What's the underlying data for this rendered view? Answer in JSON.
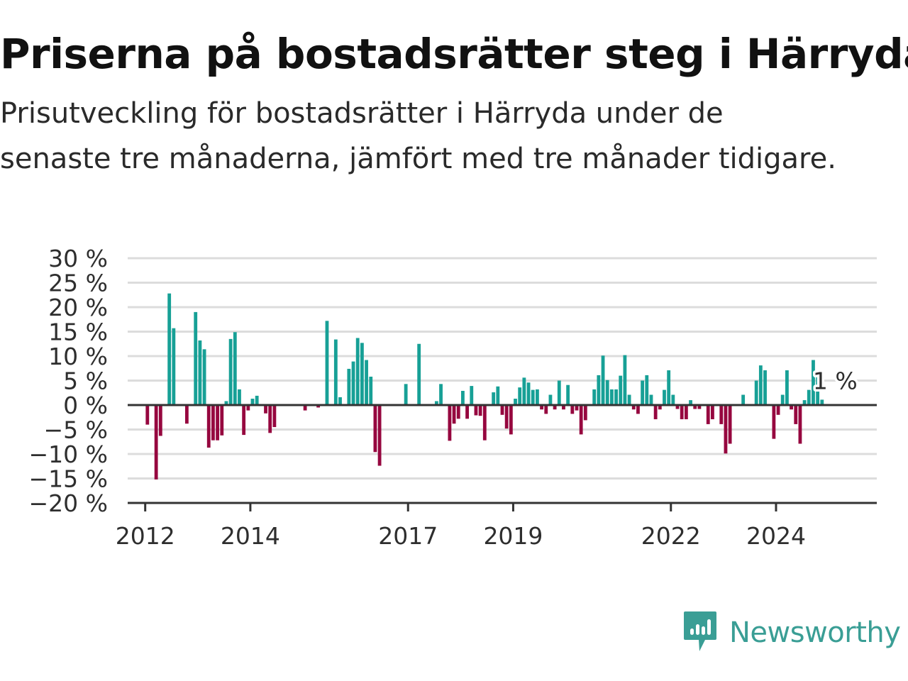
{
  "header": {
    "title": "Priserna på bostadsrätter steg i Härryda",
    "subtitle": "Prisutveckling för bostadsrätter i Härryda under de senaste tre månaderna, jämfört med tre månader tidigare."
  },
  "brand": {
    "name": "Newsworthy",
    "icon": "newsworthy-logo-icon",
    "color": "#3a9e95"
  },
  "colors": {
    "positive": "#17a096",
    "negative": "#96073f",
    "grid": "#dcdcdc",
    "baseline": "#333333"
  },
  "chart_data": {
    "type": "bar",
    "y_unit": "%",
    "ylim": [
      -20,
      30
    ],
    "yticks": [
      "30 %",
      "25 %",
      "20 %",
      "15 %",
      "10 %",
      "5 %",
      "0 %",
      "−5 %",
      "−10 %",
      "−15 %",
      "−20 %"
    ],
    "xticks": [
      "2012",
      "2014",
      "2017",
      "2019",
      "2022",
      "2024"
    ],
    "x_range": [
      "2011-09",
      "2025-12"
    ],
    "grid": true,
    "annotation": {
      "text": "1 %",
      "date": "2025-02"
    },
    "points": [
      [
        "2012-01",
        -4
      ],
      [
        "2012-03",
        -15.2
      ],
      [
        "2012-04",
        -6.3
      ],
      [
        "2012-06",
        22.8
      ],
      [
        "2012-07",
        15.7
      ],
      [
        "2012-10",
        -3.8
      ],
      [
        "2012-12",
        19
      ],
      [
        "2013-01",
        13.2
      ],
      [
        "2013-02",
        11.4
      ],
      [
        "2013-03",
        -8.7
      ],
      [
        "2013-04",
        -7.2
      ],
      [
        "2013-05",
        -7.2
      ],
      [
        "2013-06",
        -6.2
      ],
      [
        "2013-07",
        0.8
      ],
      [
        "2013-08",
        13.5
      ],
      [
        "2013-09",
        14.9
      ],
      [
        "2013-10",
        3.2
      ],
      [
        "2013-11",
        -6.1
      ],
      [
        "2013-12",
        -1.1
      ],
      [
        "2014-01",
        1.3
      ],
      [
        "2014-02",
        1.9
      ],
      [
        "2014-04",
        -1.7
      ],
      [
        "2014-05",
        -5.7
      ],
      [
        "2014-06",
        -4.5
      ],
      [
        "2015-01",
        -1.1
      ],
      [
        "2015-04",
        -0.5
      ],
      [
        "2015-06",
        17.2
      ],
      [
        "2015-08",
        13.4
      ],
      [
        "2015-09",
        1.6
      ],
      [
        "2015-11",
        7.4
      ],
      [
        "2015-12",
        8.9
      ],
      [
        "2016-01",
        13.7
      ],
      [
        "2016-02",
        12.7
      ],
      [
        "2016-03",
        9.2
      ],
      [
        "2016-04",
        5.8
      ],
      [
        "2016-05",
        -9.6
      ],
      [
        "2016-06",
        -12.4
      ],
      [
        "2016-12",
        4.3
      ],
      [
        "2017-03",
        12.5
      ],
      [
        "2017-07",
        0.8
      ],
      [
        "2017-08",
        4.3
      ],
      [
        "2017-10",
        -7.3
      ],
      [
        "2017-11",
        -3.8
      ],
      [
        "2017-12",
        -2.8
      ],
      [
        "2018-01",
        2.9
      ],
      [
        "2018-02",
        -2.8
      ],
      [
        "2018-03",
        3.9
      ],
      [
        "2018-04",
        -2.1
      ],
      [
        "2018-05",
        -2.2
      ],
      [
        "2018-06",
        -7.2
      ],
      [
        "2018-08",
        2.6
      ],
      [
        "2018-09",
        3.8
      ],
      [
        "2018-10",
        -2
      ],
      [
        "2018-11",
        -4.8
      ],
      [
        "2018-12",
        -6
      ],
      [
        "2019-01",
        1.3
      ],
      [
        "2019-02",
        3.6
      ],
      [
        "2019-03",
        5.6
      ],
      [
        "2019-04",
        4.6
      ],
      [
        "2019-05",
        3.1
      ],
      [
        "2019-06",
        3.2
      ],
      [
        "2019-07",
        -0.9
      ],
      [
        "2019-08",
        -1.8
      ],
      [
        "2019-09",
        2.1
      ],
      [
        "2019-10",
        -0.9
      ],
      [
        "2019-11",
        5
      ],
      [
        "2019-12",
        -0.9
      ],
      [
        "2020-01",
        4.1
      ],
      [
        "2020-02",
        -1.8
      ],
      [
        "2020-03",
        -1.1
      ],
      [
        "2020-04",
        -6
      ],
      [
        "2020-05",
        -3.1
      ],
      [
        "2020-07",
        3.2
      ],
      [
        "2020-08",
        6.1
      ],
      [
        "2020-09",
        10.1
      ],
      [
        "2020-10",
        5.1
      ],
      [
        "2020-11",
        3.2
      ],
      [
        "2020-12",
        3.2
      ],
      [
        "2021-01",
        6
      ],
      [
        "2021-02",
        10.2
      ],
      [
        "2021-03",
        2.1
      ],
      [
        "2021-04",
        -0.9
      ],
      [
        "2021-05",
        -1.8
      ],
      [
        "2021-06",
        5
      ],
      [
        "2021-07",
        6.1
      ],
      [
        "2021-08",
        2.1
      ],
      [
        "2021-09",
        -2.9
      ],
      [
        "2021-10",
        -0.9
      ],
      [
        "2021-11",
        3.1
      ],
      [
        "2021-12",
        7.1
      ],
      [
        "2022-01",
        2.1
      ],
      [
        "2022-02",
        -0.8
      ],
      [
        "2022-03",
        -2.9
      ],
      [
        "2022-04",
        -2.9
      ],
      [
        "2022-05",
        1
      ],
      [
        "2022-06",
        -0.8
      ],
      [
        "2022-07",
        -0.8
      ],
      [
        "2022-09",
        -3.9
      ],
      [
        "2022-10",
        -2.9
      ],
      [
        "2022-12",
        -3.9
      ],
      [
        "2023-01",
        -9.9
      ],
      [
        "2023-02",
        -7.9
      ],
      [
        "2023-05",
        2.1
      ],
      [
        "2023-08",
        5
      ],
      [
        "2023-09",
        8.1
      ],
      [
        "2023-10",
        7.1
      ],
      [
        "2023-12",
        -6.9
      ],
      [
        "2024-01",
        -2
      ],
      [
        "2024-02",
        2.1
      ],
      [
        "2024-03",
        7.1
      ],
      [
        "2024-04",
        -0.9
      ],
      [
        "2024-05",
        -3.9
      ],
      [
        "2024-06",
        -7.9
      ],
      [
        "2024-07",
        1
      ],
      [
        "2024-08",
        3.1
      ],
      [
        "2024-09",
        9.2
      ],
      [
        "2024-10",
        6.1
      ],
      [
        "2024-11",
        1.1
      ]
    ]
  }
}
